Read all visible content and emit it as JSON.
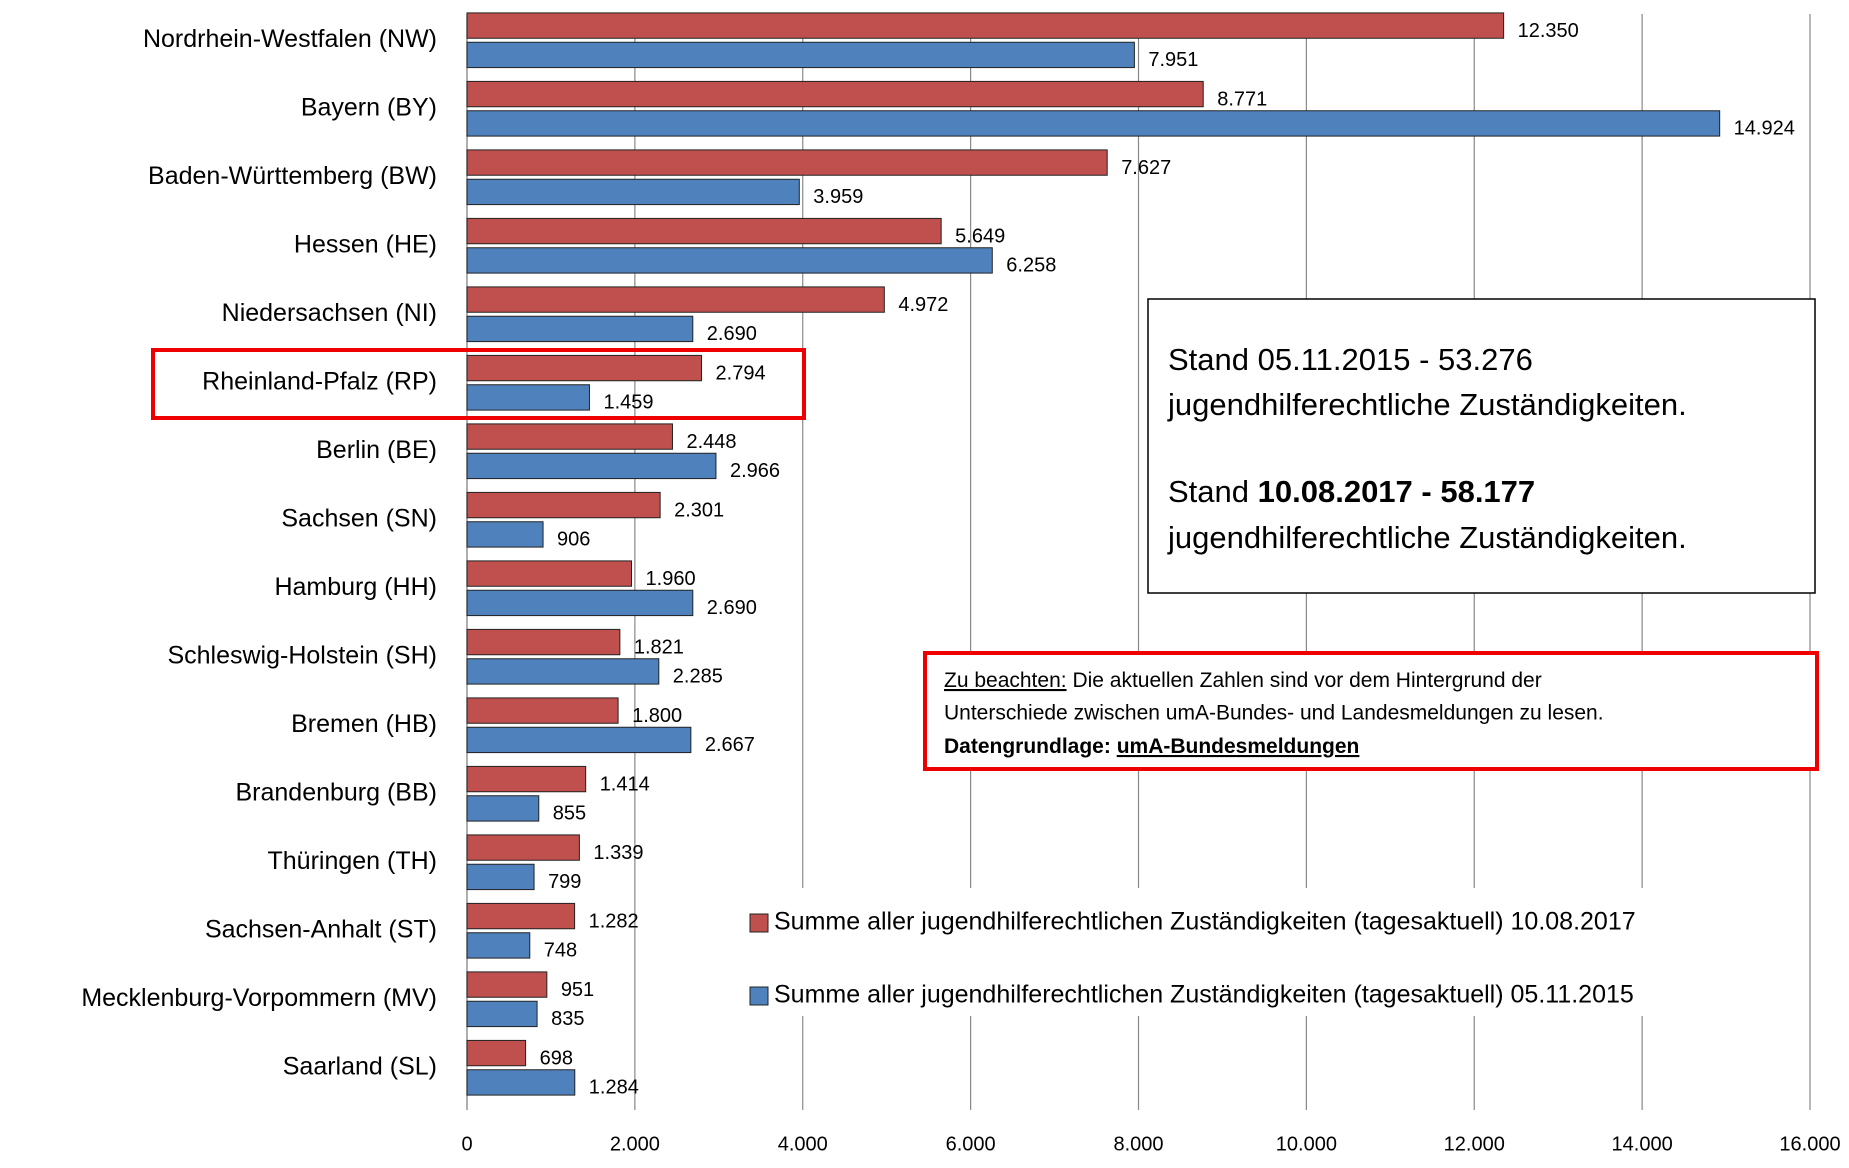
{
  "chart_data": {
    "type": "bar",
    "orientation": "horizontal",
    "categories": [
      "Nordrhein-Westfalen (NW)",
      "Bayern (BY)",
      "Baden-Württemberg (BW)",
      "Hessen (HE)",
      "Niedersachsen (NI)",
      "Rheinland-Pfalz (RP)",
      "Berlin (BE)",
      "Sachsen (SN)",
      "Hamburg (HH)",
      "Schleswig-Holstein (SH)",
      "Bremen (HB)",
      "Brandenburg (BB)",
      "Thüringen (TH)",
      "Sachsen-Anhalt (ST)",
      "Mecklenburg-Vorpommern (MV)",
      "Saarland (SL)"
    ],
    "series": [
      {
        "name": "Summe aller jugendhilferechtlichen Zuständigkeiten (tagesaktuell) 10.08.2017",
        "color": "#c0504d",
        "values": [
          12350,
          8771,
          7627,
          5649,
          4972,
          2794,
          2448,
          2301,
          1960,
          1821,
          1800,
          1414,
          1339,
          1282,
          951,
          698
        ],
        "value_labels": [
          "12.350",
          "8.771",
          "7.627",
          "5.649",
          "4.972",
          "2.794",
          "2.448",
          "2.301",
          "1.960",
          "1.821",
          "1.800",
          "1.414",
          "1.339",
          "1.282",
          "951",
          "698"
        ]
      },
      {
        "name": "Summe aller jugendhilferechtlichen Zuständigkeiten (tagesaktuell) 05.11.2015",
        "color": "#4f81bd",
        "values": [
          7951,
          14924,
          3959,
          6258,
          2690,
          1459,
          2966,
          906,
          2690,
          2285,
          2667,
          855,
          799,
          748,
          835,
          1284
        ],
        "value_labels": [
          "7.951",
          "14.924",
          "3.959",
          "6.258",
          "2.690",
          "1.459",
          "2.966",
          "906",
          "2.690",
          "2.285",
          "2.667",
          "855",
          "799",
          "748",
          "835",
          "1.284"
        ]
      }
    ],
    "xlim": [
      0,
      16000
    ],
    "xticks": [
      0,
      {
        "value": 2000,
        "label": "2.000"
      },
      {
        "value": 4000,
        "label": "4.000"
      },
      {
        "value": 6000,
        "label": "6.000"
      },
      {
        "value": 8000,
        "label": "8.000"
      },
      {
        "value": 10000,
        "label": "10.000"
      },
      {
        "value": 12000,
        "label": "12.000"
      },
      {
        "value": 14000,
        "label": "14.000"
      },
      {
        "value": 16000,
        "label": "16.000"
      }
    ],
    "grid": true,
    "legend": "lower right",
    "info_box": {
      "line1": "Stand 05.11.2015 - 53.276",
      "line2": "jugendhilferechtliche Zuständigkeiten.",
      "line3_prefix": "Stand",
      "line3_bold": "10.08.2017 - 58.177",
      "line4": "jugendhilferechtliche Zuständigkeiten."
    },
    "note": {
      "label": "Zu beachten:",
      "text1": "Die aktuellen Zahlen sind vor dem Hintergrund der",
      "text2": "Unterschiede zwischen umA-Bundes- und Landesmeldungen zu lesen.",
      "source_label": "Datengrundlage:",
      "source": "umA-Bundesmeldungen"
    }
  }
}
